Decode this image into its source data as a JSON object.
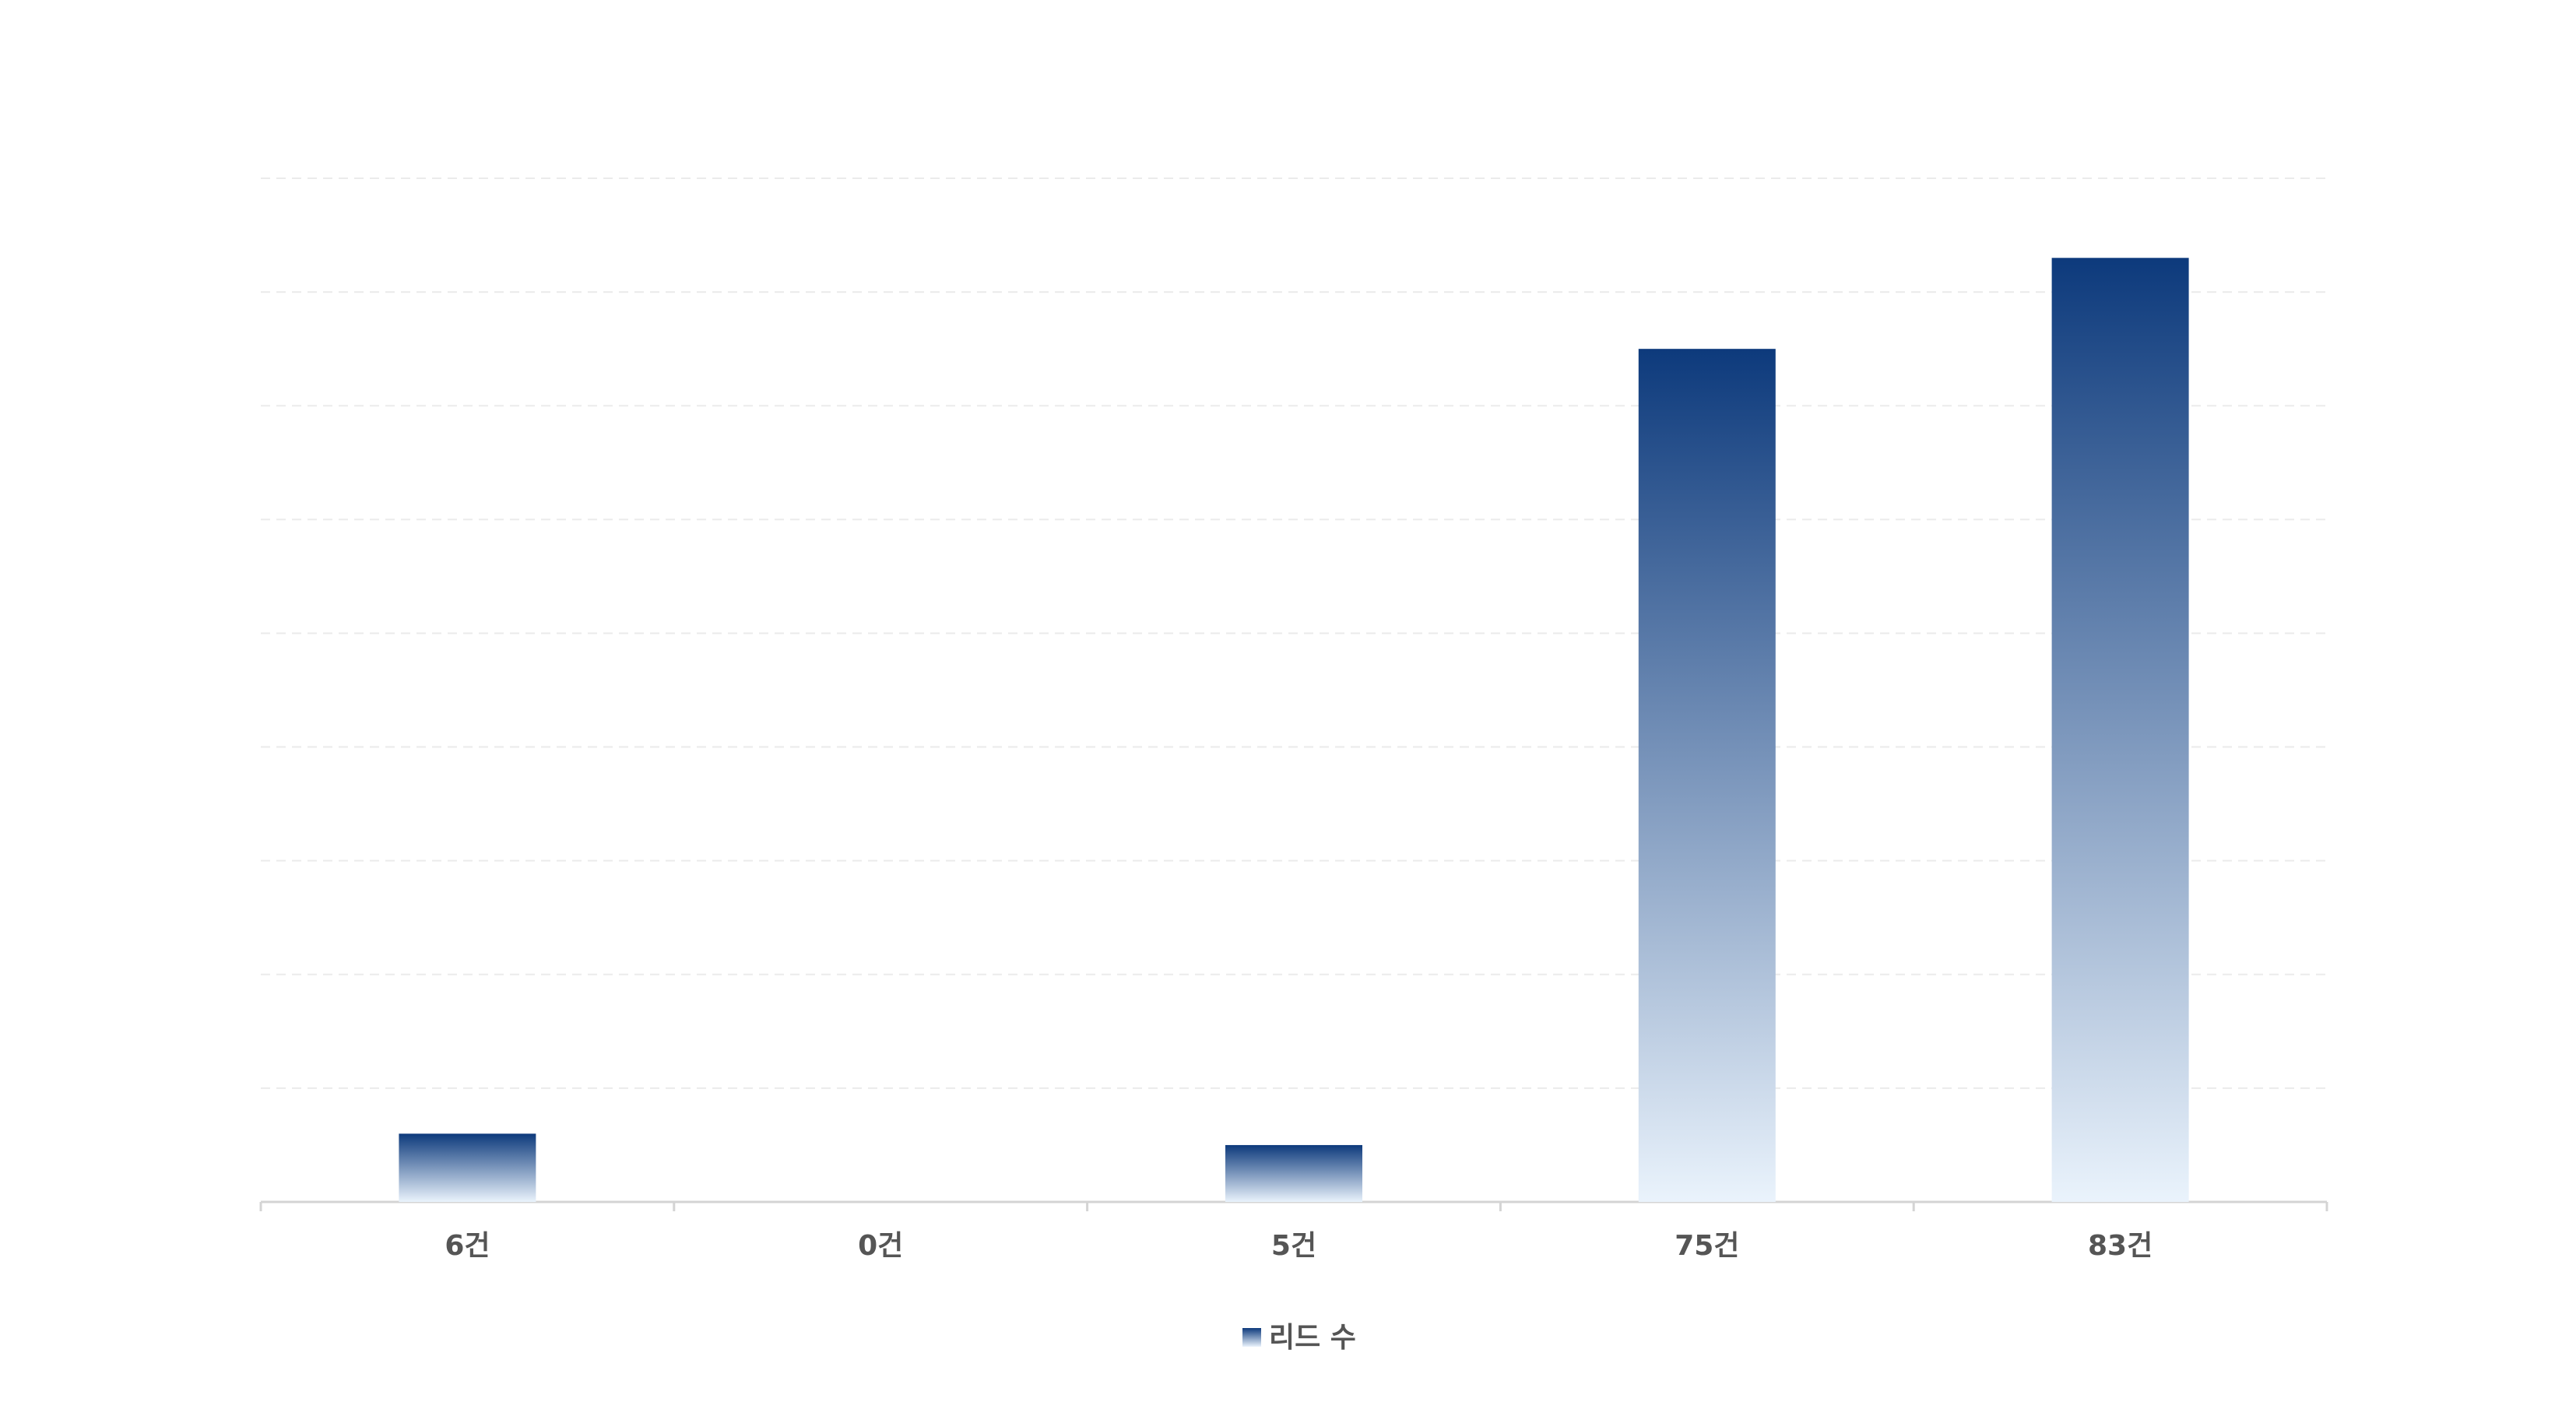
{
  "chart_data": {
    "type": "bar",
    "categories": [
      "6건",
      "0건",
      "5건",
      "75건",
      "83건"
    ],
    "series": [
      {
        "name": "리드 수",
        "color": "#0d3a7c",
        "gradient_end": "#eaf3fc",
        "values": [
          6,
          0,
          5,
          75,
          83
        ]
      }
    ],
    "ylim": [
      0,
      90
    ],
    "yticks": [
      0,
      10,
      20,
      30,
      40,
      50,
      60,
      70,
      80,
      90
    ],
    "grid": true,
    "legend": "bottom"
  }
}
